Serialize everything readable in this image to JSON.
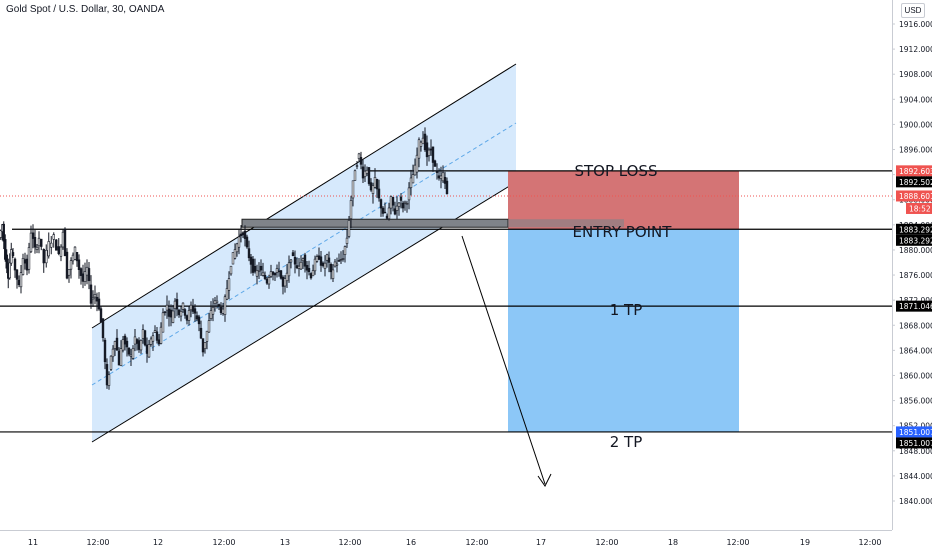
{
  "symbol_title": "Gold Spot / U.S. Dollar, 30, OANDA",
  "currency": "USD",
  "countdown": "18:52",
  "colors": {
    "up": "#26a69a",
    "down": "#ef5350",
    "candle": "#131722",
    "channel_fill": "#cfe5fb",
    "stop_zone": "#d47475",
    "target_zone": "#8cc7f7",
    "entry_zone": "#7f8389",
    "last_price": "#ef5350",
    "line": "#000000"
  },
  "annotations": {
    "stop_loss": "STOP LOSS",
    "entry_point": "ENTRY POINT",
    "tp1": "1 TP",
    "tp2": "2 TP"
  },
  "chart_data": {
    "type": "candlestick",
    "x_tick_labels": [
      "11",
      "12:00",
      "12",
      "12:00",
      "13",
      "12:00",
      "16",
      "12:00",
      "17",
      "12:00",
      "18",
      "12:00",
      "19",
      "12:00"
    ],
    "y_ticks": [
      1840,
      1844,
      1848,
      1852,
      1856,
      1860,
      1864,
      1868,
      1872,
      1876,
      1880,
      1884,
      1888,
      1892,
      1896,
      1900,
      1904,
      1908,
      1912,
      1916
    ],
    "ylim": [
      1839,
      1918
    ],
    "price_labels": [
      {
        "id": "stop",
        "text": "1892.603",
        "value": 1892.603,
        "color": "#ef5350"
      },
      {
        "id": "s1",
        "text": "1892.502",
        "value": 1892.502,
        "color": "#000000"
      },
      {
        "id": "last",
        "text": "1888.601",
        "value": 1888.601,
        "color": "#ef5350"
      },
      {
        "id": "e1",
        "text": "1883.292",
        "value": 1883.292,
        "color": "#000000"
      },
      {
        "id": "e2",
        "text": "1883.292",
        "value": 1883.292,
        "color": "#000000"
      },
      {
        "id": "tp1",
        "text": "1871.046",
        "value": 1871.046,
        "color": "#000000"
      },
      {
        "id": "tp2a",
        "text": "1851.007",
        "value": 1851.007,
        "color": "#2962ff"
      },
      {
        "id": "tp2b",
        "text": "1851.007",
        "value": 1851.007,
        "color": "#000000"
      }
    ],
    "levels": [
      {
        "id": "stop",
        "value": 1892.6
      },
      {
        "id": "entry",
        "value": 1883.3
      },
      {
        "id": "tp1",
        "value": 1871.05
      },
      {
        "id": "tp2",
        "value": 1851.0
      }
    ],
    "last_price": 1888.601,
    "path_points": [
      [
        0,
        1882
      ],
      [
        3,
        1884
      ],
      [
        6,
        1879
      ],
      [
        9,
        1876
      ],
      [
        12,
        1880
      ],
      [
        16,
        1877
      ],
      [
        20,
        1874
      ],
      [
        24,
        1879
      ],
      [
        28,
        1877
      ],
      [
        32,
        1883
      ],
      [
        36,
        1880
      ],
      [
        40,
        1882
      ],
      [
        45,
        1878
      ],
      [
        50,
        1881
      ],
      [
        55,
        1882
      ],
      [
        60,
        1879
      ],
      [
        64,
        1883
      ],
      [
        68,
        1876
      ],
      [
        72,
        1878
      ],
      [
        76,
        1880
      ],
      [
        80,
        1877
      ],
      [
        84,
        1875
      ],
      [
        88,
        1877
      ],
      [
        92,
        1872
      ],
      [
        96,
        1873
      ],
      [
        100,
        1871
      ],
      [
        104,
        1866
      ],
      [
        108,
        1858
      ],
      [
        112,
        1863
      ],
      [
        116,
        1866
      ],
      [
        120,
        1862
      ],
      [
        124,
        1866
      ],
      [
        128,
        1864
      ],
      [
        132,
        1863
      ],
      [
        136,
        1866
      ],
      [
        140,
        1864
      ],
      [
        144,
        1867
      ],
      [
        148,
        1863
      ],
      [
        152,
        1866
      ],
      [
        156,
        1867
      ],
      [
        160,
        1865
      ],
      [
        164,
        1870
      ],
      [
        168,
        1871
      ],
      [
        172,
        1869
      ],
      [
        176,
        1872
      ],
      [
        180,
        1870
      ],
      [
        184,
        1871
      ],
      [
        188,
        1869
      ],
      [
        192,
        1871
      ],
      [
        196,
        1870
      ],
      [
        200,
        1868
      ],
      [
        204,
        1864
      ],
      [
        208,
        1867
      ],
      [
        212,
        1870
      ],
      [
        216,
        1872
      ],
      [
        220,
        1871
      ],
      [
        224,
        1870
      ],
      [
        228,
        1874
      ],
      [
        232,
        1878
      ],
      [
        236,
        1880
      ],
      [
        240,
        1882
      ],
      [
        244,
        1883
      ],
      [
        248,
        1880
      ],
      [
        252,
        1878
      ],
      [
        256,
        1876
      ],
      [
        260,
        1877
      ],
      [
        264,
        1876
      ],
      [
        268,
        1875
      ],
      [
        272,
        1877
      ],
      [
        276,
        1876
      ],
      [
        280,
        1877
      ],
      [
        284,
        1874
      ],
      [
        288,
        1876
      ],
      [
        292,
        1879
      ],
      [
        296,
        1878
      ],
      [
        300,
        1877
      ],
      [
        304,
        1879
      ],
      [
        308,
        1877
      ],
      [
        312,
        1876
      ],
      [
        316,
        1878
      ],
      [
        320,
        1879
      ],
      [
        324,
        1877
      ],
      [
        328,
        1879
      ],
      [
        332,
        1876
      ],
      [
        336,
        1878
      ],
      [
        340,
        1878
      ],
      [
        344,
        1879
      ],
      [
        348,
        1882
      ],
      [
        352,
        1888
      ],
      [
        356,
        1893
      ],
      [
        360,
        1895
      ],
      [
        364,
        1892
      ],
      [
        368,
        1893
      ],
      [
        372,
        1889
      ],
      [
        376,
        1891
      ],
      [
        380,
        1888
      ],
      [
        384,
        1886
      ],
      [
        388,
        1885
      ],
      [
        392,
        1888
      ],
      [
        396,
        1886
      ],
      [
        400,
        1888
      ],
      [
        404,
        1887
      ],
      [
        408,
        1888
      ],
      [
        412,
        1891
      ],
      [
        416,
        1893
      ],
      [
        420,
        1897
      ],
      [
        424,
        1898
      ],
      [
        428,
        1895
      ],
      [
        432,
        1896
      ],
      [
        436,
        1893
      ],
      [
        440,
        1891
      ],
      [
        444,
        1892
      ],
      [
        448,
        1889
      ]
    ]
  }
}
